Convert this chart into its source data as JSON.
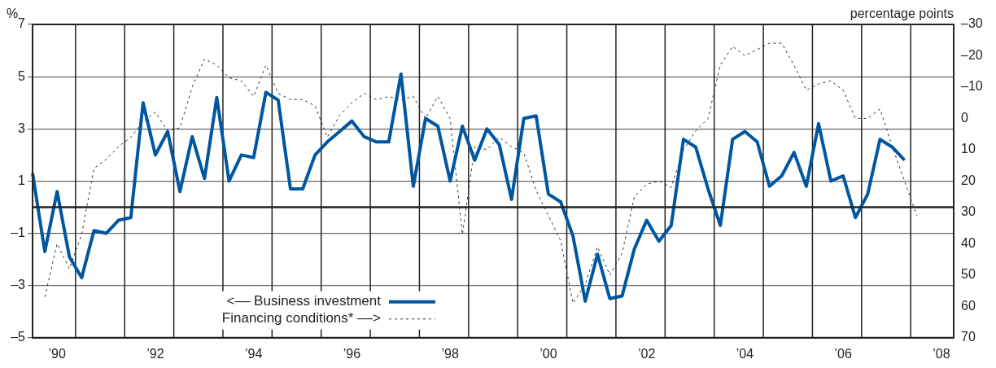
{
  "chart_data": {
    "type": "line",
    "ylabel": "%",
    "y2label": "percentage points",
    "categories": [
      null,
      null,
      "’90",
      null,
      null,
      null,
      null,
      null,
      null,
      null,
      "’92",
      null,
      null,
      null,
      null,
      null,
      null,
      null,
      "’94",
      null,
      null,
      null,
      null,
      null,
      null,
      null,
      "’96",
      null,
      null,
      null,
      null,
      null,
      null,
      null,
      "’98",
      null,
      null,
      null,
      null,
      null,
      null,
      null,
      "’00",
      null,
      null,
      null,
      null,
      null,
      null,
      null,
      "’02",
      null,
      null,
      null,
      null,
      null,
      null,
      null,
      "’04",
      null,
      null,
      null,
      null,
      null,
      null,
      null,
      "’06",
      null,
      null,
      null,
      null,
      null,
      null,
      null,
      "’08",
      null
    ],
    "series": [
      {
        "name": "<–– Business investment",
        "color": "#0057a0",
        "line_style": "solid",
        "values": [
          1.3,
          -1.7,
          0.6,
          -1.9,
          -2.7,
          -0.9,
          -1.0,
          -0.5,
          -0.4,
          4.0,
          2.0,
          2.9,
          0.6,
          2.7,
          1.1,
          4.2,
          1.0,
          2.0,
          1.9,
          4.4,
          4.1,
          0.7,
          0.7,
          2.0,
          2.5,
          2.9,
          3.3,
          2.7,
          2.5,
          2.5,
          5.1,
          0.8,
          3.4,
          3.1,
          1.0,
          3.1,
          1.8,
          3.0,
          2.4,
          0.3,
          3.4,
          3.5,
          0.5,
          0.2,
          -1.1,
          -3.6,
          -1.8,
          -3.5,
          -3.4,
          -1.6,
          -0.5,
          -1.3,
          -0.7,
          2.6,
          2.3,
          0.7,
          -0.7,
          2.6,
          2.9,
          2.5,
          0.8,
          1.2,
          2.1,
          0.8,
          3.2,
          1.0,
          1.2,
          -0.4,
          0.5,
          2.6,
          2.3,
          1.8,
          null,
          null,
          null,
          null
        ]
      },
      {
        "name": "Financing conditions* ––>",
        "color": "#333333",
        "line_style": "dotted",
        "axis": "y2",
        "values": [
          null,
          57,
          40,
          48,
          37,
          16,
          13,
          9,
          6,
          1,
          -2,
          4,
          3,
          -10,
          -19,
          -17,
          -13,
          -12,
          -7,
          -17,
          -8,
          -6,
          -6,
          -4,
          6,
          -1,
          -5,
          -8,
          -6,
          -7,
          -6,
          -7,
          0,
          -7,
          0,
          37,
          9,
          10,
          6,
          9,
          11,
          23,
          31,
          39,
          59,
          53,
          41,
          50,
          43,
          25,
          21,
          20,
          22,
          10,
          4,
          0,
          -17,
          -23,
          -20,
          -22,
          -24,
          -24,
          -17,
          -9,
          -11,
          -12,
          -9,
          0,
          0,
          -3,
          9,
          20,
          31,
          null,
          null,
          null
        ]
      }
    ],
    "ylim": [
      -5,
      7
    ],
    "yticks": [
      {
        "value": -5,
        "label": "–5"
      },
      {
        "value": -3,
        "label": "–3"
      },
      {
        "value": -1,
        "label": "–1"
      },
      1,
      3,
      5,
      7
    ],
    "y2lim": [
      70,
      -30
    ],
    "y2ticks": [
      {
        "value": -30,
        "label": "–30"
      },
      {
        "value": -20,
        "label": "–20"
      },
      {
        "value": -10,
        "label": "–10"
      },
      0,
      10,
      20,
      30,
      40,
      50,
      60,
      70
    ],
    "ref_lines": [
      {
        "axis": "y",
        "value": 0,
        "color": "#222222"
      }
    ],
    "grid": true,
    "legend": "bottom left",
    "marker": "none"
  }
}
